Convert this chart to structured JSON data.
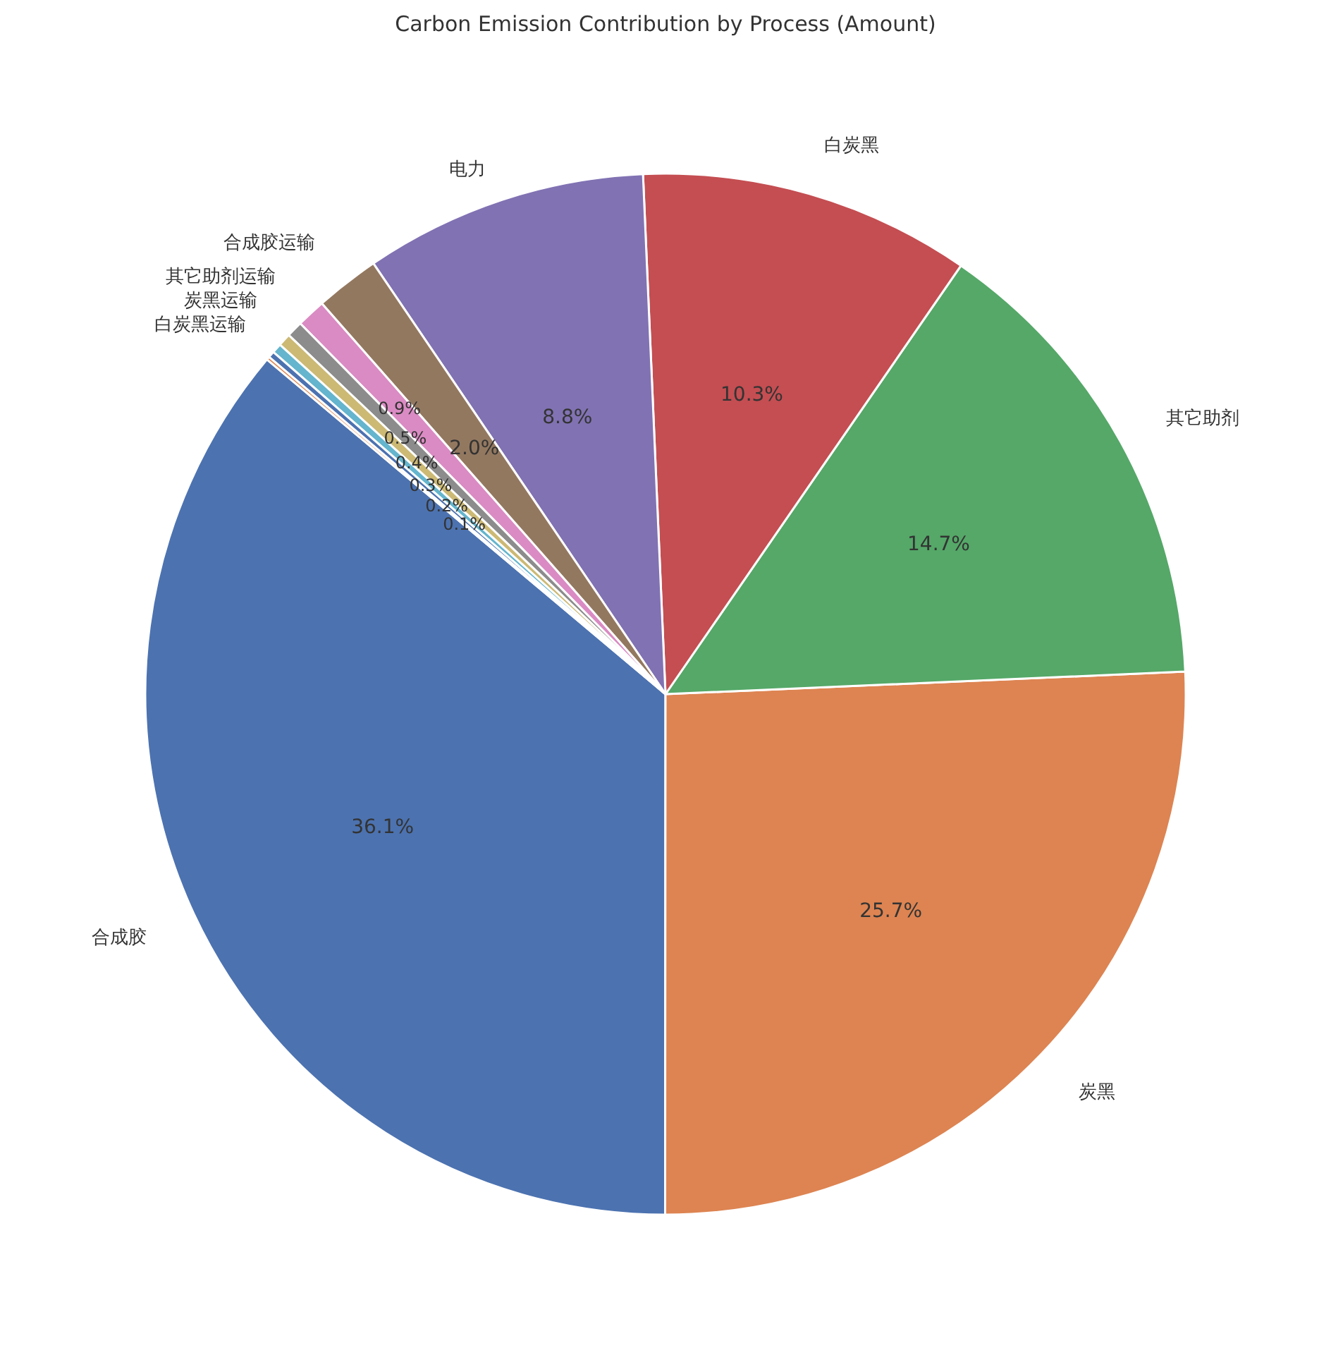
{
  "chart_data": {
    "type": "pie",
    "title": "Carbon Emission Contribution by Process (Amount)",
    "categories": [
      "合成胶",
      "炭黑",
      "其它助剂",
      "白炭黑",
      "电力",
      "合成胶运输",
      "其它助剂运输",
      "炭黑运输",
      "白炭黑运输",
      null,
      null,
      null
    ],
    "values": [
      36.1,
      25.7,
      14.7,
      10.3,
      8.8,
      2.0,
      0.9,
      0.5,
      0.4,
      0.3,
      0.2,
      0.1
    ],
    "colors": [
      "#4c72b0",
      "#dd8452",
      "#55a868",
      "#c44e52",
      "#8172b3",
      "#937860",
      "#da8bc3",
      "#8c8c8c",
      "#ccb974",
      "#64b5cd",
      "#4c72b0",
      "#dd8452"
    ],
    "value_labels": [
      "36.1%",
      "25.7%",
      "14.7%",
      "10.3%",
      "8.8%",
      "2.0%",
      "0.9%",
      "0.5%",
      "0.4%",
      "0.3%",
      "0.2%",
      "0.1%"
    ]
  }
}
